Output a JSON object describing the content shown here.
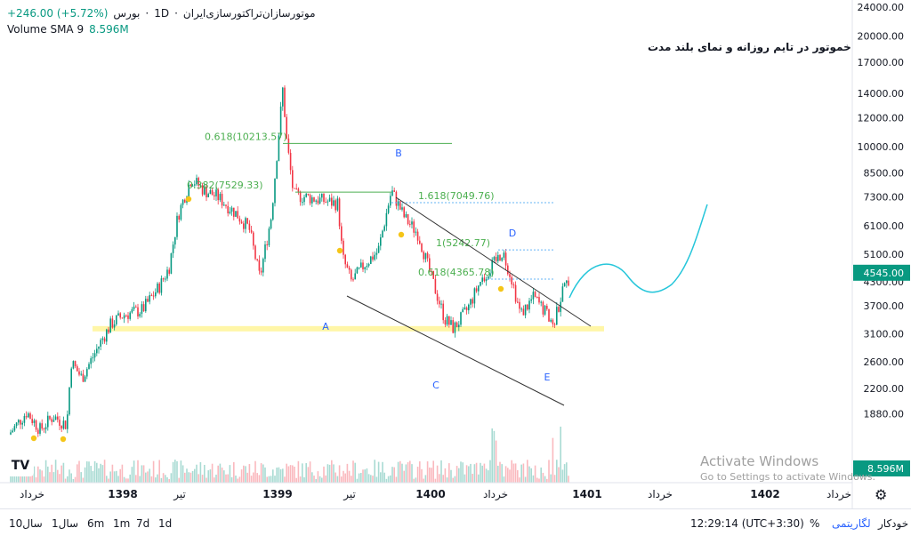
{
  "header": {
    "symbol": "موتورسازان‌تراکتورسازی‌ایران",
    "interval": "1D",
    "exchange": "بورس",
    "change": "+246.00 (+5.72%)",
    "indicator_label": "Volume SMA 9",
    "indicator_value": "8.596M"
  },
  "annotation_title": "خموتور در تایم روزانه و نمای بلند مدت",
  "price_badge": "4545.00",
  "volume_badge": "8.596M",
  "colors": {
    "up": "#089981",
    "down": "#f23645",
    "fib": "#4caf50",
    "channel": "#333333",
    "forecast": "#26c6da",
    "support": "#fff59d",
    "labels": "#2962ff"
  },
  "chart_data": {
    "type": "candlestick",
    "scale": "log",
    "ylim": [
      1550,
      24000
    ],
    "y_ticks": [
      "24000.00",
      "20000.00",
      "17000.00",
      "14000.00",
      "12000.00",
      "10000.00",
      "8500.00",
      "7300.00",
      "6100.00",
      "5100.00",
      "4300.00",
      "3700.00",
      "3100.00",
      "2600.00",
      "2200.00",
      "1880.00"
    ],
    "x_ticks": [
      "خرداد",
      "1398",
      "تیر",
      "1399",
      "تیر",
      "1400",
      "خرداد",
      "1401",
      "خرداد",
      "1402",
      "خرداد"
    ],
    "fib_levels": [
      {
        "label": "0.618(10213.57)",
        "value": 10213.57
      },
      {
        "label": "0.382(7529.33)",
        "value": 7529.33
      },
      {
        "label": "1.618(7049.76)",
        "value": 7049.76
      },
      {
        "label": "1(5242.77)",
        "value": 5242.77
      },
      {
        "label": "0.618(4365.78)",
        "value": 4365.78
      }
    ],
    "wave_labels": [
      "A",
      "B",
      "C",
      "D",
      "E"
    ],
    "support_level": 3200,
    "last_price": 4545.0,
    "change_percent": 5.72
  },
  "timeframes": [
    "10سال",
    "1سال",
    "6m",
    "1m",
    "7d",
    "1d"
  ],
  "footer": {
    "time": "12:29:14 (UTC+3:30)",
    "percent": "%",
    "log": "لگاریتمی",
    "auto": "خودکار"
  },
  "watermark": {
    "line1": "Activate Windows",
    "line2": "Go to Settings to activate Windows."
  }
}
